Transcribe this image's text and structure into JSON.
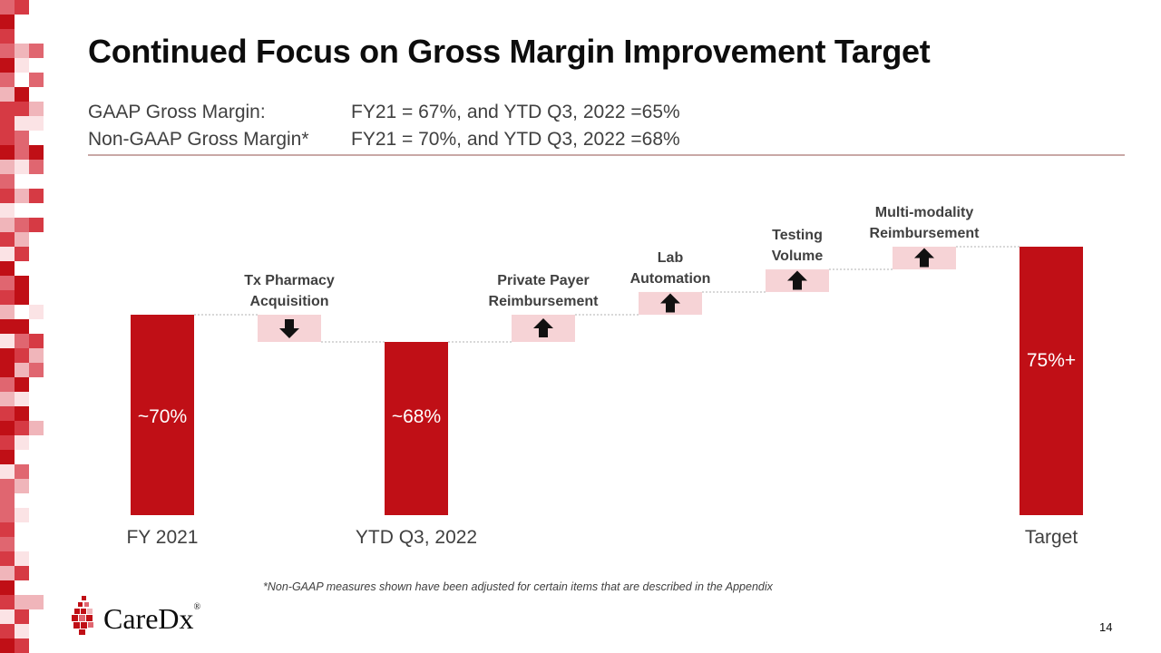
{
  "slide": {
    "title": "Continued Focus on Gross Margin Improvement Target",
    "page_number": "14",
    "footnote": "*Non-GAAP measures shown have been adjusted for certain items that are described in the Appendix"
  },
  "metrics": [
    {
      "label": "GAAP Gross Margin:",
      "value": "FY21 = 67%, and YTD Q3, 2022 =65%"
    },
    {
      "label": "Non-GAAP Gross Margin*",
      "value": "FY21 = 70%, and YTD Q3, 2022 =68%"
    }
  ],
  "logo": {
    "text": "CareDx",
    "registered": "®"
  },
  "colors": {
    "bar": "#c00f16",
    "step": "#f6d3d6",
    "arrow": "#111111",
    "connector": "#b0b0b0",
    "brand": "#c00f16"
  },
  "chart_data": {
    "type": "bar",
    "subtype": "waterfall",
    "title": "",
    "xlabel": "",
    "ylabel": "",
    "grid": false,
    "categories": [
      "FY 2021",
      "Tx Pharmacy Acquisition",
      "YTD Q3, 2022",
      "Private Payer Reimbursement",
      "Lab Automation",
      "Testing Volume",
      "Multi-modality Reimbursement",
      "Target"
    ],
    "axis_labels": [
      "FY 2021",
      "YTD Q3, 2022",
      "Target"
    ],
    "series": [
      {
        "name": "Total",
        "category": "FY 2021",
        "start": 0,
        "end": 70,
        "label": "~70%"
      },
      {
        "name": "Step",
        "category": "Tx Pharmacy Acquisition",
        "label": "Tx Pharmacy\nAcquisition",
        "start": 70,
        "end": 68,
        "direction": "down"
      },
      {
        "name": "Total",
        "category": "YTD Q3, 2022",
        "start": 0,
        "end": 68,
        "label": "~68%"
      },
      {
        "name": "Step",
        "category": "Private Payer Reimbursement",
        "label": "Private Payer\nReimbursement",
        "start": 68,
        "end": 70,
        "direction": "up"
      },
      {
        "name": "Step",
        "category": "Lab Automation",
        "label": "Lab\nAutomation",
        "start": 70,
        "end": 71.67,
        "direction": "up"
      },
      {
        "name": "Step",
        "category": "Testing Volume",
        "label": "Testing\nVolume",
        "start": 71.67,
        "end": 73.33,
        "direction": "up"
      },
      {
        "name": "Step",
        "category": "Multi-modality Reimbursement",
        "label": "Multi-modality\nReimbursement",
        "start": 73.33,
        "end": 75,
        "direction": "up"
      },
      {
        "name": "Total",
        "category": "Target",
        "start": 0,
        "end": 75,
        "label": "75%+"
      }
    ]
  }
}
